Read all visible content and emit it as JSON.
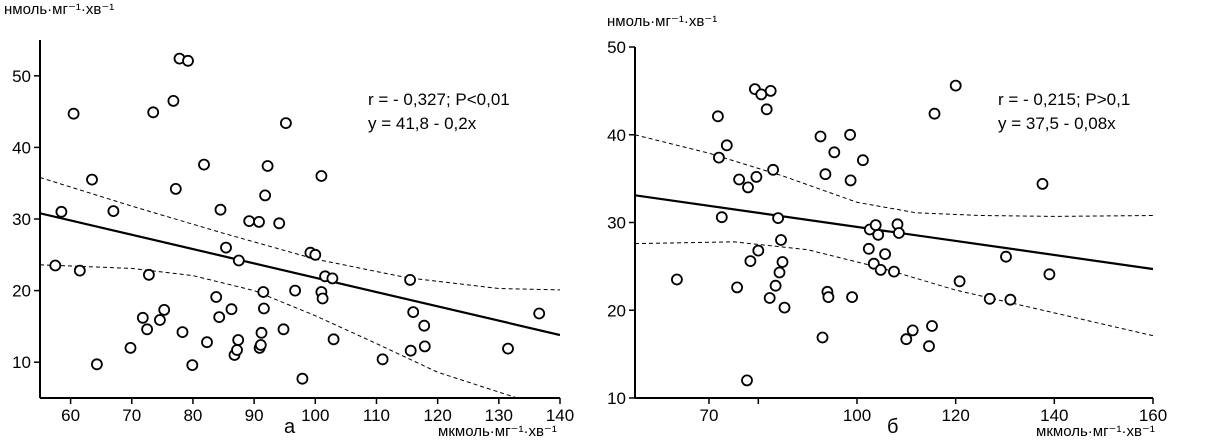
{
  "chart_data": [
    {
      "type": "scatter",
      "panel_label": "а",
      "ylabel": "нмоль·мг⁻¹·хв⁻¹",
      "xlabel": "мкмоль·мг⁻¹·хв⁻¹",
      "xlim": [
        55,
        140
      ],
      "ylim": [
        5,
        55
      ],
      "xticks": [
        60,
        70,
        80,
        90,
        100,
        110,
        120,
        130,
        140
      ],
      "yticks": [
        10,
        20,
        30,
        40,
        50
      ],
      "annotation": [
        "r = - 0,327; P<0,01",
        "y = 41,8 - 0,2x"
      ],
      "regression": {
        "intercept": 41.8,
        "slope": -0.2
      },
      "ci_upper": [
        [
          55,
          35.8
        ],
        [
          70,
          31.8
        ],
        [
          85,
          28.0
        ],
        [
          100,
          24.4
        ],
        [
          115,
          21.8
        ],
        [
          130,
          20.3
        ],
        [
          140,
          20.1
        ]
      ],
      "ci_lower": [
        [
          55,
          23.6
        ],
        [
          70,
          23.1
        ],
        [
          80,
          22.1
        ],
        [
          90,
          20.0
        ],
        [
          100,
          16.5
        ],
        [
          110,
          12.6
        ],
        [
          120,
          8.6
        ],
        [
          133,
          5.0
        ]
      ],
      "points": [
        [
          57.5,
          23.5
        ],
        [
          58.5,
          31.0
        ],
        [
          60.5,
          44.7
        ],
        [
          61.5,
          22.8
        ],
        [
          63.5,
          35.5
        ],
        [
          64.3,
          9.7
        ],
        [
          67.0,
          31.1
        ],
        [
          69.8,
          12.0
        ],
        [
          71.8,
          16.2
        ],
        [
          72.5,
          14.6
        ],
        [
          72.8,
          22.2
        ],
        [
          73.5,
          44.9
        ],
        [
          74.6,
          15.9
        ],
        [
          75.3,
          17.3
        ],
        [
          76.8,
          46.5
        ],
        [
          77.2,
          34.2
        ],
        [
          77.8,
          52.4
        ],
        [
          78.3,
          14.2
        ],
        [
          79.2,
          52.1
        ],
        [
          79.9,
          9.6
        ],
        [
          81.8,
          37.6
        ],
        [
          82.3,
          12.8
        ],
        [
          83.8,
          19.1
        ],
        [
          84.3,
          16.3
        ],
        [
          84.5,
          31.3
        ],
        [
          85.4,
          26.0
        ],
        [
          86.3,
          17.4
        ],
        [
          86.8,
          11.0
        ],
        [
          87.2,
          11.7
        ],
        [
          87.4,
          13.1
        ],
        [
          87.5,
          24.2
        ],
        [
          89.2,
          29.7
        ],
        [
          90.8,
          29.6
        ],
        [
          90.9,
          12.0
        ],
        [
          91.1,
          12.4
        ],
        [
          91.2,
          14.1
        ],
        [
          91.5,
          19.8
        ],
        [
          91.6,
          17.5
        ],
        [
          91.8,
          33.3
        ],
        [
          92.2,
          37.4
        ],
        [
          94.1,
          29.4
        ],
        [
          94.8,
          14.6
        ],
        [
          95.2,
          43.4
        ],
        [
          96.7,
          20.0
        ],
        [
          97.9,
          7.7
        ],
        [
          99.2,
          25.3
        ],
        [
          100.0,
          25.0
        ],
        [
          101.0,
          36.0
        ],
        [
          101.0,
          19.8
        ],
        [
          101.2,
          18.9
        ],
        [
          101.6,
          22.0
        ],
        [
          102.8,
          21.7
        ],
        [
          103.0,
          13.2
        ],
        [
          111.0,
          10.4
        ],
        [
          115.5,
          21.5
        ],
        [
          115.6,
          11.6
        ],
        [
          116.0,
          17.0
        ],
        [
          117.8,
          15.1
        ],
        [
          117.9,
          12.2
        ],
        [
          131.5,
          11.9
        ],
        [
          136.6,
          16.8
        ]
      ]
    },
    {
      "type": "scatter",
      "panel_label": "б",
      "ylabel": "нмоль·мг⁻¹·хв⁻¹",
      "xlabel": "мкмоль·мг⁻¹·хв⁻¹",
      "xlim": [
        55,
        160
      ],
      "ylim": [
        10,
        50
      ],
      "xticks": [
        70,
        80,
        100,
        120,
        140,
        160
      ],
      "xtick_labels": [
        "70",
        "",
        "100",
        "120",
        "140",
        "160"
      ],
      "yticks": [
        10,
        20,
        30,
        40,
        50
      ],
      "annotation": [
        "r = - 0,215; P>0,1",
        "y = 37,5 - 0,08x"
      ],
      "regression": {
        "intercept": 37.5,
        "slope": -0.08
      },
      "ci_upper": [
        [
          55,
          40.0
        ],
        [
          70,
          37.9
        ],
        [
          85,
          35.3
        ],
        [
          100,
          32.3
        ],
        [
          112,
          31.1
        ],
        [
          125,
          30.8
        ],
        [
          140,
          30.7
        ],
        [
          160,
          30.8
        ]
      ],
      "ci_lower": [
        [
          55,
          27.6
        ],
        [
          75,
          27.8
        ],
        [
          90,
          26.9
        ],
        [
          105,
          24.8
        ],
        [
          120,
          22.3
        ],
        [
          140,
          19.7
        ],
        [
          160,
          17.1
        ]
      ],
      "points": [
        [
          63.5,
          23.5
        ],
        [
          71.8,
          42.1
        ],
        [
          72.0,
          37.4
        ],
        [
          72.6,
          30.6
        ],
        [
          73.6,
          38.8
        ],
        [
          75.7,
          22.6
        ],
        [
          76.1,
          34.9
        ],
        [
          77.7,
          12.0
        ],
        [
          77.9,
          34.0
        ],
        [
          78.4,
          25.6
        ],
        [
          79.3,
          45.2
        ],
        [
          79.6,
          35.2
        ],
        [
          80.0,
          26.8
        ],
        [
          80.6,
          44.6
        ],
        [
          81.7,
          42.9
        ],
        [
          82.3,
          21.4
        ],
        [
          82.5,
          45.0
        ],
        [
          83.0,
          36.0
        ],
        [
          83.5,
          22.8
        ],
        [
          84.0,
          30.5
        ],
        [
          84.3,
          24.3
        ],
        [
          84.6,
          28.0
        ],
        [
          84.9,
          25.5
        ],
        [
          85.3,
          20.3
        ],
        [
          92.6,
          39.8
        ],
        [
          93.0,
          16.9
        ],
        [
          93.6,
          35.5
        ],
        [
          94.0,
          22.1
        ],
        [
          94.2,
          21.5
        ],
        [
          95.4,
          38.0
        ],
        [
          98.6,
          40.0
        ],
        [
          98.7,
          34.8
        ],
        [
          99.0,
          21.5
        ],
        [
          101.2,
          37.1
        ],
        [
          102.4,
          27.0
        ],
        [
          102.6,
          29.2
        ],
        [
          103.4,
          25.3
        ],
        [
          103.8,
          29.7
        ],
        [
          104.3,
          28.6
        ],
        [
          104.8,
          24.6
        ],
        [
          105.7,
          26.4
        ],
        [
          107.5,
          24.4
        ],
        [
          108.2,
          29.8
        ],
        [
          108.5,
          28.8
        ],
        [
          110.0,
          16.7
        ],
        [
          111.3,
          17.7
        ],
        [
          114.6,
          15.9
        ],
        [
          115.2,
          18.2
        ],
        [
          115.7,
          42.4
        ],
        [
          120.0,
          45.6
        ],
        [
          120.8,
          23.3
        ],
        [
          126.9,
          21.3
        ],
        [
          130.2,
          26.1
        ],
        [
          131.1,
          21.2
        ],
        [
          137.6,
          34.4
        ],
        [
          139.0,
          24.1
        ]
      ]
    }
  ]
}
